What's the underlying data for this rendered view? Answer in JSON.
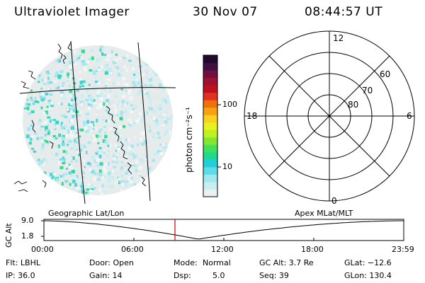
{
  "header": {
    "instrument": "Ultraviolet Imager",
    "date": "30 Nov 07",
    "time": "08:44:57 UT"
  },
  "colorbar": {
    "label": "photon cm⁻²s⁻¹",
    "ticks": [
      "100",
      "10"
    ],
    "colors": [
      "#e8f2f4",
      "#c8eef2",
      "#a0e8ee",
      "#60dce8",
      "#20d0d8",
      "#20d890",
      "#40e060",
      "#80e830",
      "#c0f020",
      "#e8f020",
      "#f8d020",
      "#f8a010",
      "#f07010",
      "#e03020",
      "#c01020",
      "#a01030",
      "#701040",
      "#401040",
      "#200830"
    ]
  },
  "left_map": {
    "caption": "Geographic Lat/Lon"
  },
  "right_map": {
    "caption": "Apex MLat/MLT",
    "mlt_labels": {
      "top": "12",
      "left": "18",
      "right": "6",
      "bottom": "0"
    },
    "lat_labels": [
      "60",
      "70",
      "80"
    ]
  },
  "altitude_plot": {
    "ylabel": "GC Alt",
    "ytick_top": "9.0",
    "ytick_bottom": "1.8",
    "xticks": [
      "00:00",
      "06:00",
      "12:00",
      "18:00",
      "23:59"
    ],
    "marker_color": "#cc0000"
  },
  "info": {
    "flt": "Flt: LBHL",
    "ip": "IP: 36.0",
    "door": "Door: Open",
    "gain": "Gain: 14",
    "mode_label": "Mode:",
    "mode_value": "Normal",
    "dsp_label": "Dsp:",
    "dsp_value": "5.0",
    "gcalt": "GC Alt: 3.7 Re",
    "seq": "Seq: 39",
    "glat": "GLat: −12.6",
    "glon": "GLon: 130.4"
  }
}
